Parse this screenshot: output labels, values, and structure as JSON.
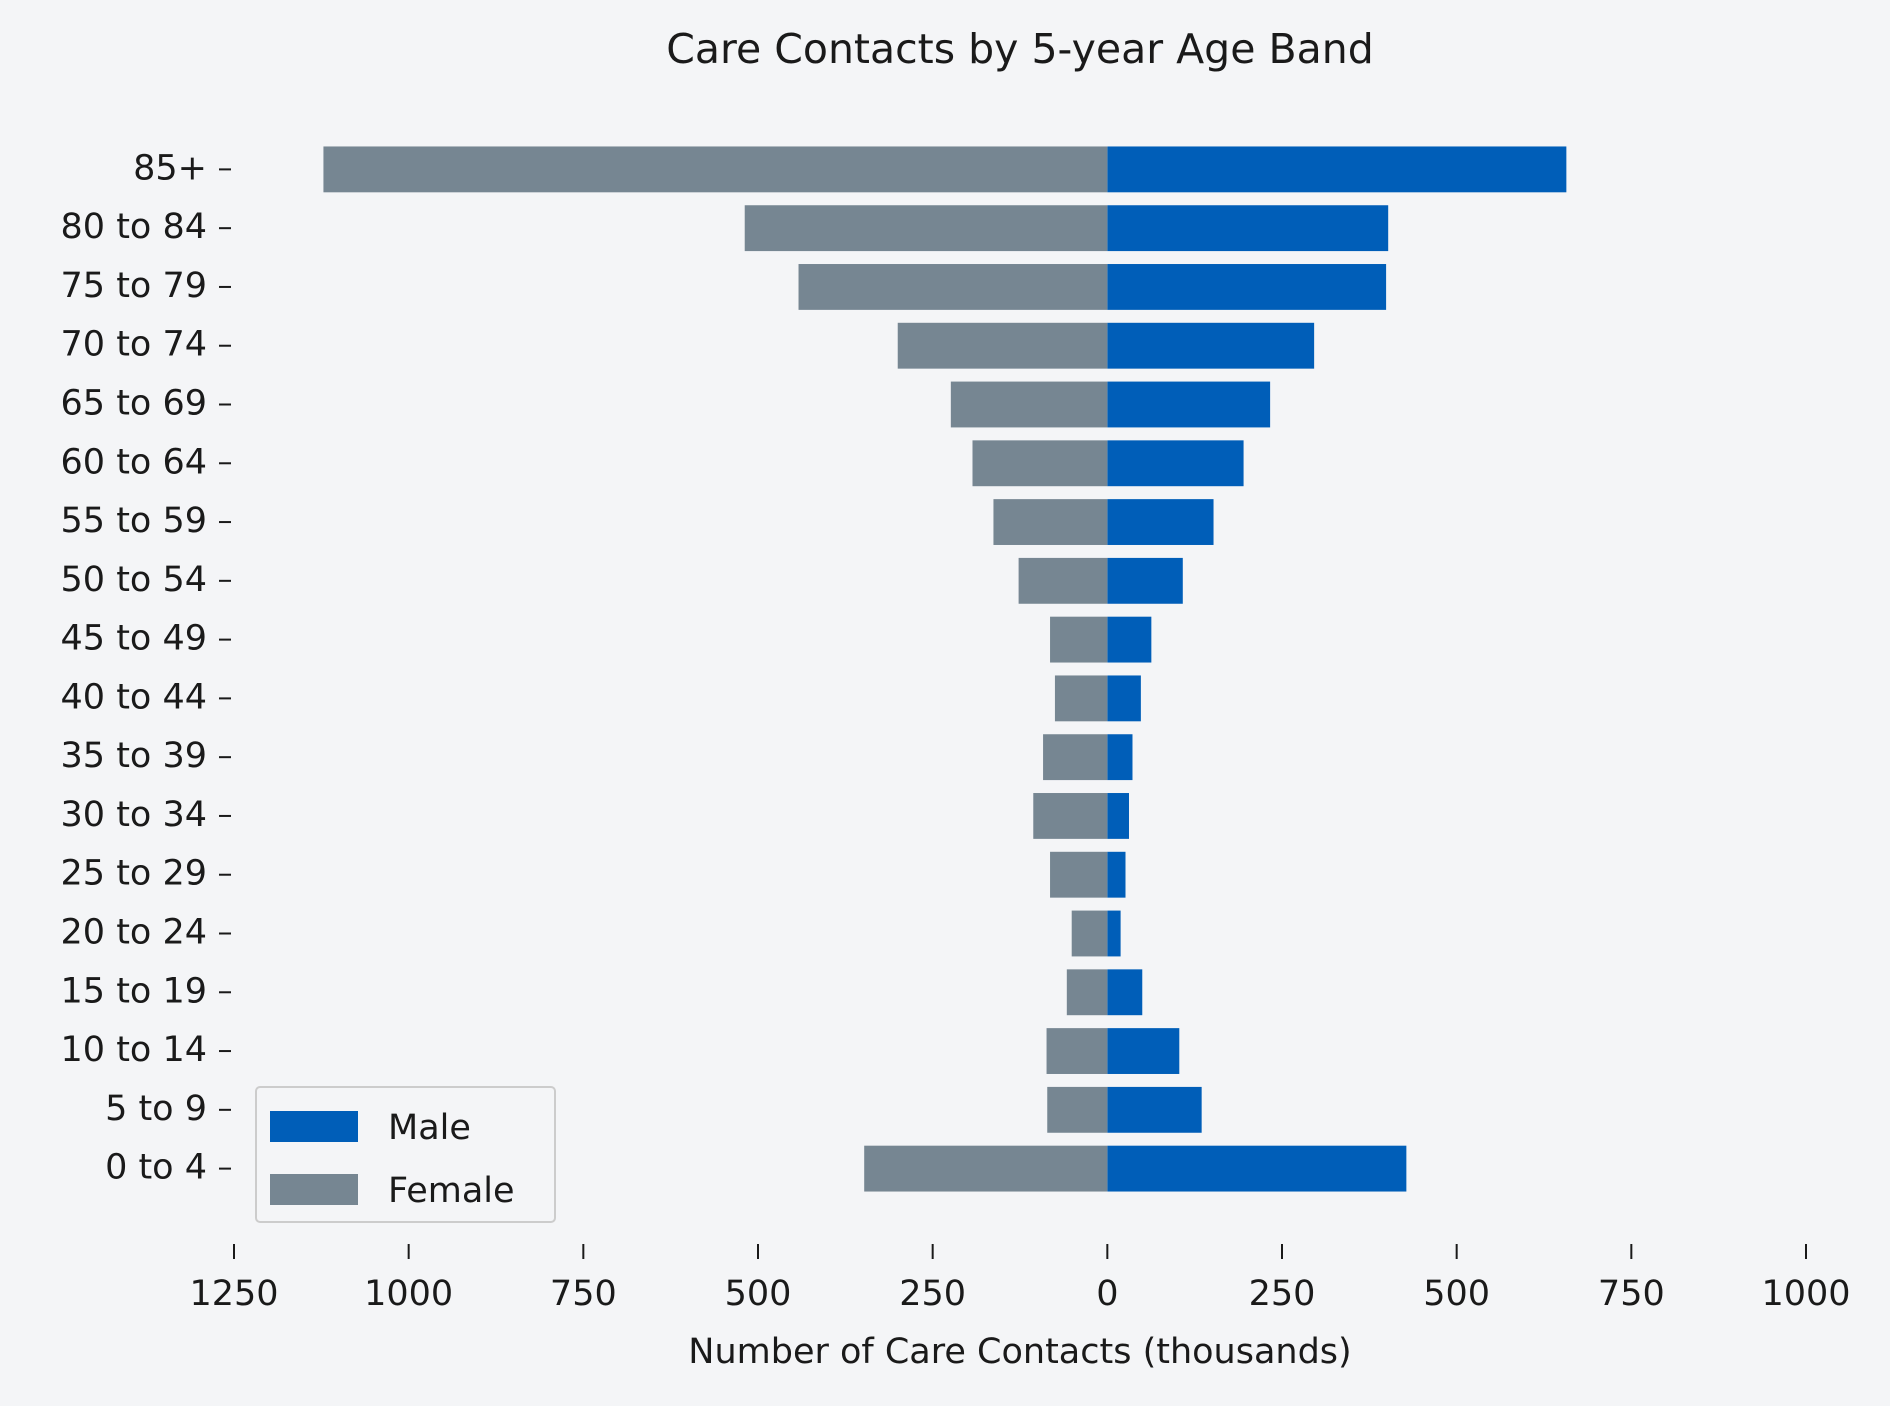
{
  "chart_data": {
    "type": "bar",
    "orientation": "horizontal",
    "title": "Care Contacts by 5-year Age Band",
    "xlabel": "Number of Care Contacts (thousands)",
    "categories": [
      "0 to 4",
      "5 to 9",
      "10 to 14",
      "15 to 19",
      "20 to 24",
      "25 to 29",
      "30 to 34",
      "35 to 39",
      "40 to 44",
      "45 to 49",
      "50 to 54",
      "55 to 59",
      "60 to 64",
      "65 to 69",
      "70 to 74",
      "75 to 79",
      "80 to 84",
      "85+"
    ],
    "series": [
      {
        "name": "Male",
        "color": "#005eb8",
        "values": [
          428,
          135,
          103,
          50,
          19,
          26,
          31,
          36,
          48,
          63,
          108,
          152,
          195,
          233,
          296,
          399,
          402,
          657
        ]
      },
      {
        "name": "Female",
        "color": "#768692",
        "values": [
          -348,
          -86,
          -87,
          -58,
          -51,
          -82,
          -106,
          -92,
          -75,
          -82,
          -127,
          -163,
          -193,
          -224,
          -300,
          -442,
          -519,
          -1122
        ]
      }
    ],
    "xlim": [
      -1250,
      1000
    ],
    "xticks": [
      {
        "value": -1250,
        "label": "1250"
      },
      {
        "value": -1000,
        "label": "1000"
      },
      {
        "value": -750,
        "label": "750"
      },
      {
        "value": -500,
        "label": "500"
      },
      {
        "value": -250,
        "label": "250"
      },
      0,
      250,
      500,
      750,
      1000
    ],
    "legend": "lower left",
    "grid": false
  }
}
